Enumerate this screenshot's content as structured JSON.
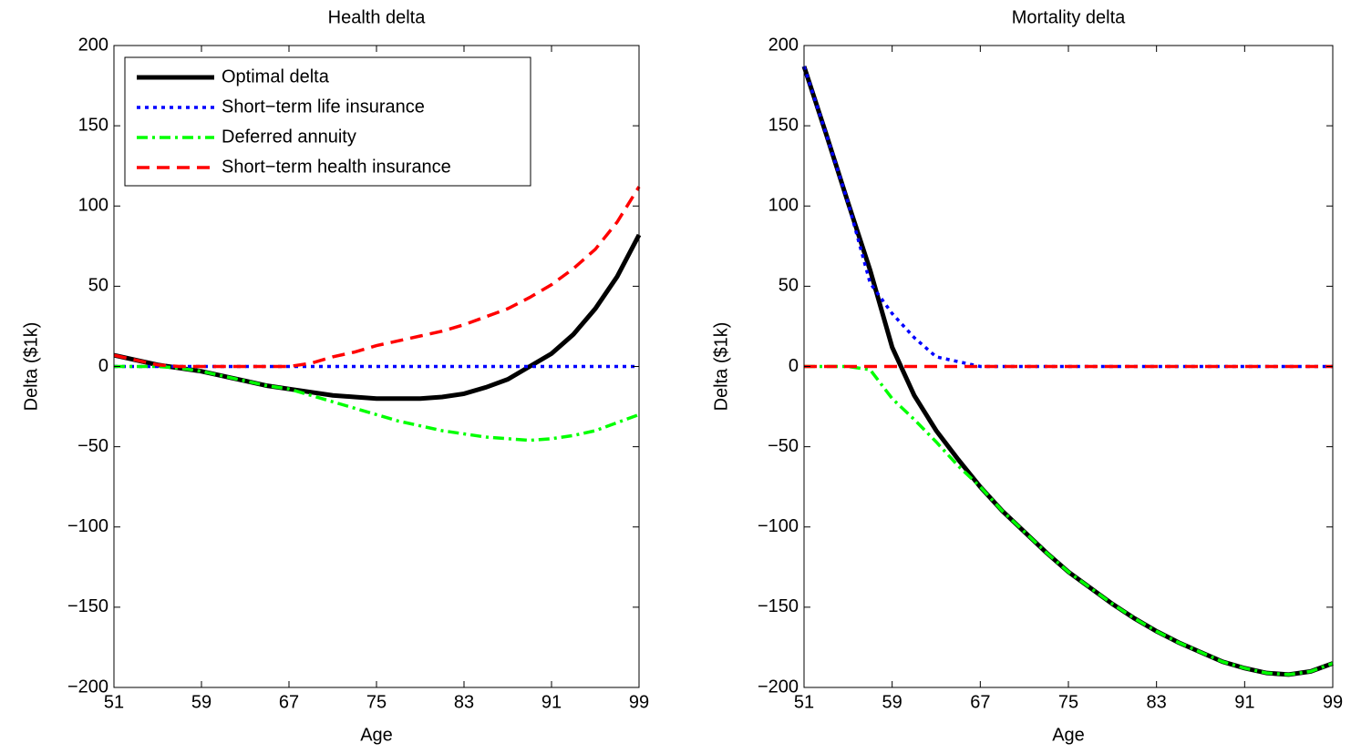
{
  "chart_data": [
    {
      "type": "line",
      "title": "Health delta",
      "xlabel": "Age",
      "ylabel": "Delta ($1k)",
      "x": [
        51,
        53,
        55,
        57,
        59,
        61,
        63,
        65,
        67,
        69,
        71,
        73,
        75,
        77,
        79,
        81,
        83,
        85,
        87,
        89,
        91,
        93,
        95,
        97,
        99
      ],
      "xlim": [
        51,
        99
      ],
      "xticks": [
        51,
        59,
        67,
        75,
        83,
        91,
        99
      ],
      "ylim": [
        -200,
        200
      ],
      "yticks": [
        {
          "value": -200,
          "label": "−200"
        },
        {
          "value": -150,
          "label": "−150"
        },
        {
          "value": -100,
          "label": "−100"
        },
        {
          "value": -50,
          "label": "−50"
        },
        0,
        50,
        100,
        150,
        200
      ],
      "legend": "upper left",
      "series": [
        {
          "name": "Optimal delta",
          "color": "#000000",
          "style": "solid",
          "width": 5,
          "values": [
            7,
            4,
            1,
            -1,
            -3,
            -6,
            -9,
            -12,
            -14,
            -16,
            -18,
            -19,
            -20,
            -20,
            -20,
            -19,
            -17,
            -13,
            -8,
            0,
            8,
            20,
            36,
            56,
            82
          ]
        },
        {
          "name": "Short−term life insurance",
          "color": "#0000ff",
          "style": "dotted",
          "width": 3.5,
          "values": [
            0,
            0,
            0,
            0,
            0,
            0,
            0,
            0,
            0,
            0,
            0,
            0,
            0,
            0,
            0,
            0,
            0,
            0,
            0,
            0,
            0,
            0,
            0,
            0,
            0
          ]
        },
        {
          "name": "Deferred annuity",
          "color": "#00ff00",
          "style": "dashdot",
          "width": 3.5,
          "values": [
            0,
            0,
            0,
            -1,
            -3,
            -6,
            -9,
            -12,
            -14,
            -18,
            -22,
            -26,
            -30,
            -34,
            -37,
            -40,
            -42,
            -44,
            -45,
            -46,
            -45,
            -43,
            -40,
            -35,
            -30
          ]
        },
        {
          "name": "Short−term health insurance",
          "color": "#ff0000",
          "style": "dashed",
          "width": 3.5,
          "values": [
            7,
            4,
            1,
            0,
            0,
            0,
            0,
            0,
            0,
            2,
            6,
            9,
            13,
            16,
            19,
            22,
            26,
            31,
            36,
            43,
            51,
            61,
            73,
            90,
            112
          ]
        }
      ]
    },
    {
      "type": "line",
      "title": "Mortality delta",
      "xlabel": "Age",
      "ylabel": "Delta ($1k)",
      "x": [
        51,
        53,
        55,
        57,
        59,
        61,
        63,
        65,
        67,
        69,
        71,
        73,
        75,
        77,
        79,
        81,
        83,
        85,
        87,
        89,
        91,
        93,
        95,
        97,
        99
      ],
      "xlim": [
        51,
        99
      ],
      "xticks": [
        51,
        59,
        67,
        75,
        83,
        91,
        99
      ],
      "ylim": [
        -200,
        200
      ],
      "yticks": [
        {
          "value": -200,
          "label": "−200"
        },
        {
          "value": -150,
          "label": "−150"
        },
        {
          "value": -100,
          "label": "−100"
        },
        {
          "value": -50,
          "label": "−50"
        },
        0,
        50,
        100,
        150,
        200
      ],
      "series": [
        {
          "name": "Optimal delta",
          "color": "#000000",
          "style": "solid",
          "width": 5,
          "values": [
            187,
            145,
            102,
            60,
            12,
            -18,
            -40,
            -58,
            -75,
            -90,
            -103,
            -116,
            -128,
            -138,
            -148,
            -157,
            -165,
            -172,
            -178,
            -184,
            -188,
            -191,
            -192,
            -190,
            -185
          ]
        },
        {
          "name": "Short−term life insurance",
          "color": "#0000ff",
          "style": "dotted",
          "width": 3.5,
          "values": [
            187,
            145,
            102,
            52,
            33,
            18,
            6,
            3,
            0,
            0,
            0,
            0,
            0,
            0,
            0,
            0,
            0,
            0,
            0,
            0,
            0,
            0,
            0,
            0,
            0
          ]
        },
        {
          "name": "Deferred annuity",
          "color": "#00ff00",
          "style": "dashdot",
          "width": 3.5,
          "values": [
            0,
            0,
            0,
            -2,
            -20,
            -33,
            -47,
            -62,
            -75,
            -90,
            -103,
            -116,
            -128,
            -138,
            -148,
            -157,
            -165,
            -172,
            -178,
            -184,
            -188,
            -191,
            -192,
            -190,
            -185
          ]
        },
        {
          "name": "Short−term health insurance",
          "color": "#ff0000",
          "style": "dashed",
          "width": 3.5,
          "values": [
            0,
            0,
            0,
            0,
            0,
            0,
            0,
            0,
            0,
            0,
            0,
            0,
            0,
            0,
            0,
            0,
            0,
            0,
            0,
            0,
            0,
            0,
            0,
            0,
            0
          ]
        }
      ]
    }
  ]
}
